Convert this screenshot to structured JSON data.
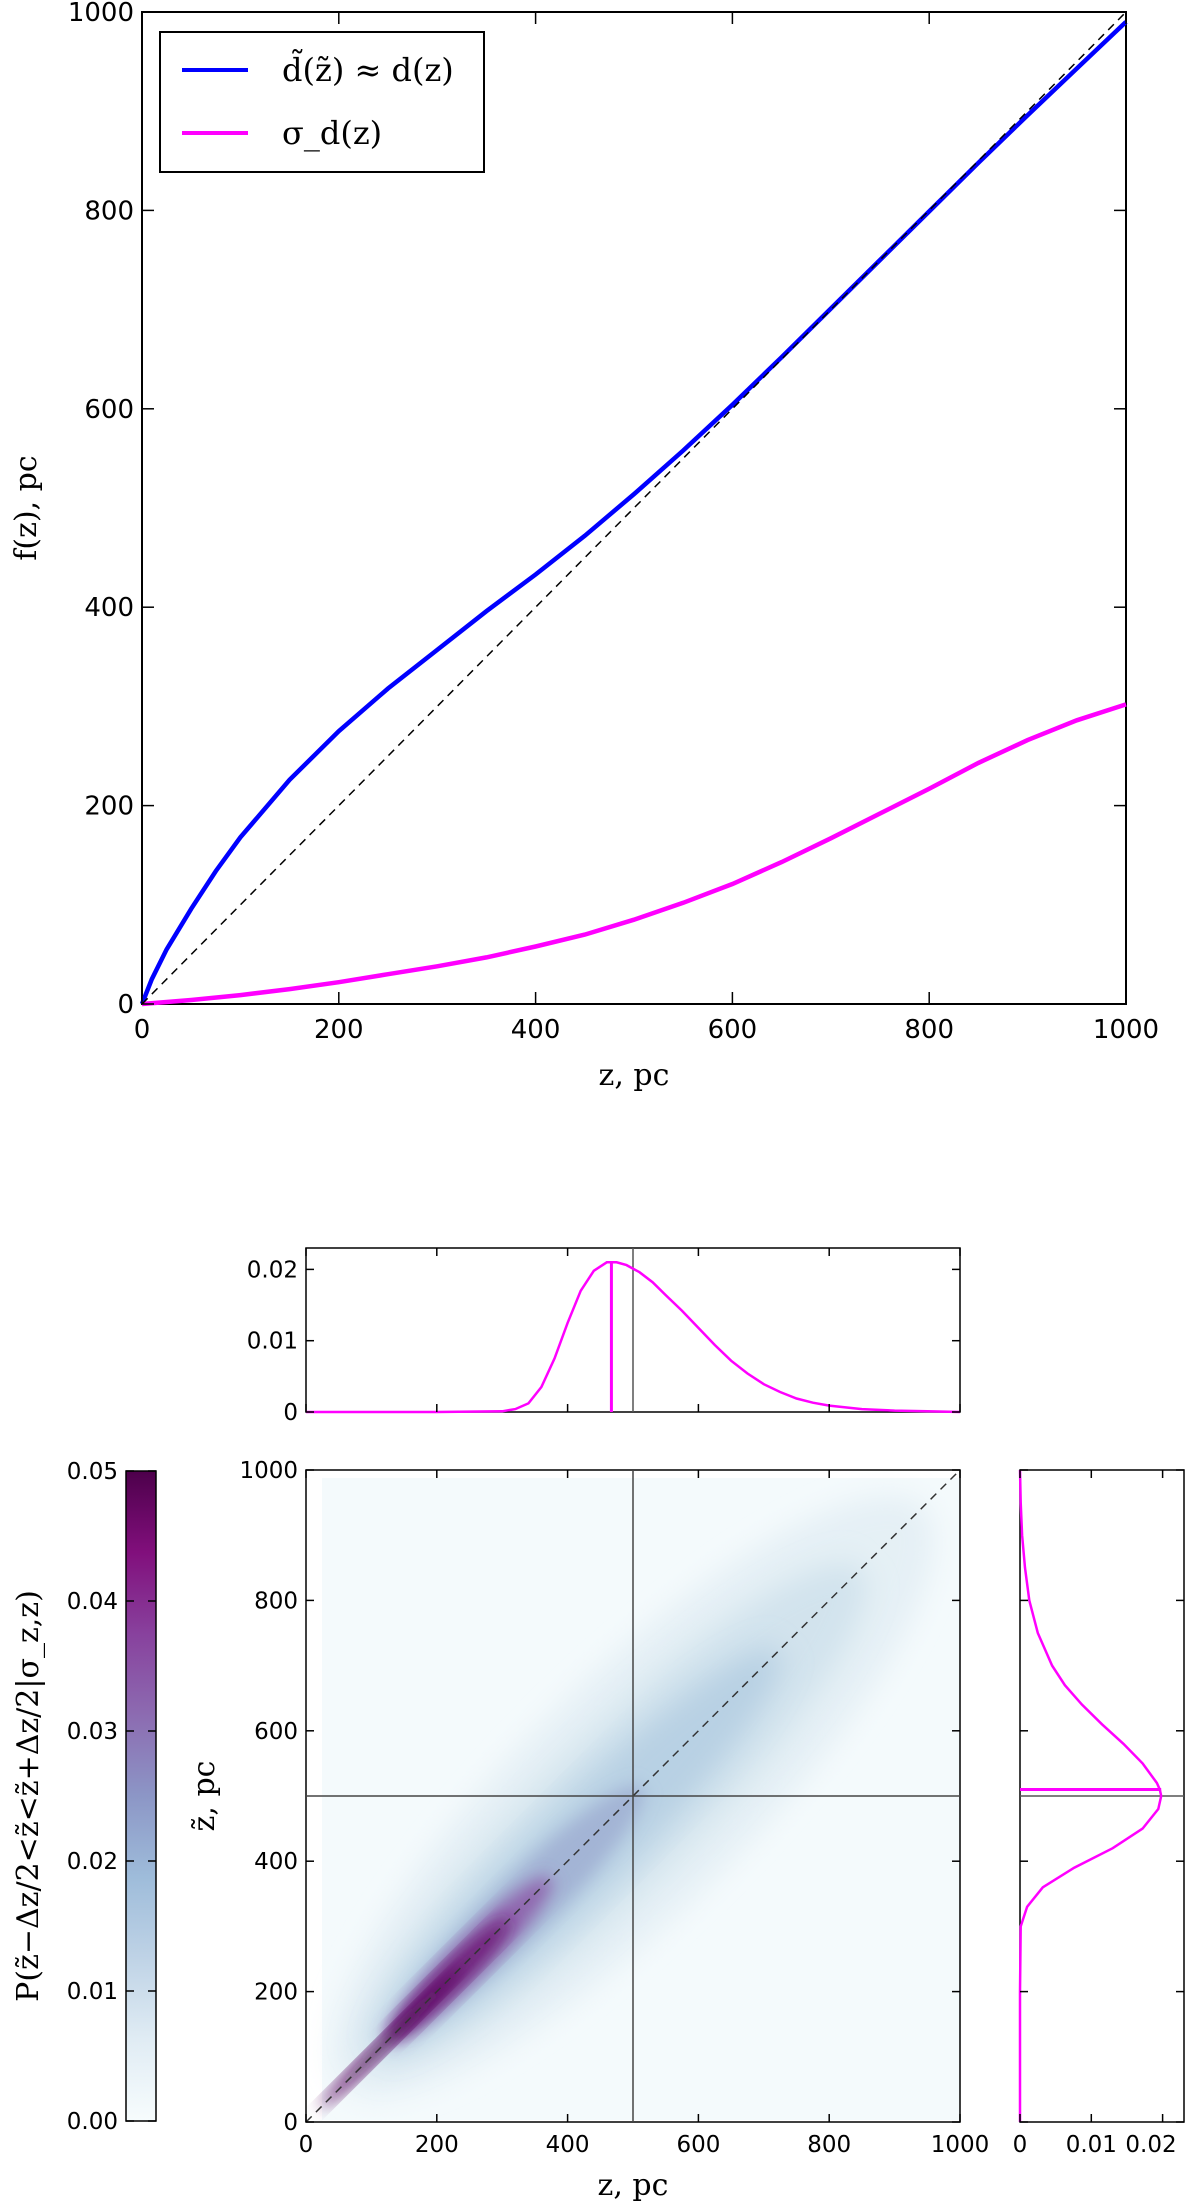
{
  "chart_data": [
    {
      "type": "line",
      "xlabel": "z, pc",
      "ylabel": "f(z), pc",
      "xlim": [
        0,
        1000
      ],
      "ylim": [
        0,
        1000
      ],
      "xticks": [
        "0",
        "200",
        "400",
        "600",
        "800",
        "1000"
      ],
      "yticks": [
        "0",
        "200",
        "400",
        "600",
        "800",
        "1000"
      ],
      "grid": false,
      "legend_position": "top-left",
      "series": [
        {
          "name": "d̃(z̃) ≈ d(z)",
          "color": "#0000ff",
          "x": [
            0,
            10,
            25,
            50,
            75,
            100,
            150,
            200,
            250,
            300,
            350,
            400,
            450,
            500,
            550,
            600,
            650,
            700,
            750,
            800,
            850,
            900,
            950,
            1000
          ],
          "y": [
            0,
            25,
            55,
            96,
            134,
            168,
            226,
            275,
            318,
            357,
            396,
            433,
            472,
            514,
            558,
            604,
            652,
            701,
            750,
            799,
            848,
            896,
            943,
            990
          ]
        },
        {
          "name": "σ_d(z)",
          "color": "#ff00ff",
          "x": [
            0,
            50,
            100,
            150,
            200,
            250,
            300,
            350,
            400,
            450,
            500,
            550,
            600,
            650,
            700,
            750,
            800,
            850,
            900,
            950,
            1000
          ],
          "y": [
            0,
            4,
            9,
            15,
            22,
            30,
            38,
            47,
            58,
            70,
            85,
            102,
            121,
            143,
            167,
            192,
            217,
            243,
            266,
            286,
            302
          ]
        },
        {
          "name": "",
          "color": "#000000",
          "style": "dashed",
          "x": [
            0,
            1000
          ],
          "y": [
            0,
            1000
          ]
        }
      ]
    },
    {
      "type": "line",
      "panel": "top-marginal",
      "xlim": [
        0,
        1000
      ],
      "ylim": [
        0,
        0.023
      ],
      "yticks": [
        "0",
        "0.01",
        "0.02"
      ],
      "x": [
        0,
        100,
        200,
        250,
        300,
        320,
        340,
        360,
        380,
        400,
        420,
        440,
        460,
        475,
        490,
        510,
        530,
        550,
        575,
        600,
        625,
        650,
        675,
        700,
        725,
        750,
        775,
        800,
        850,
        900,
        950,
        1000
      ],
      "y": [
        0,
        0,
        0,
        5e-05,
        0.0001,
        0.0004,
        0.0012,
        0.0035,
        0.0075,
        0.0125,
        0.017,
        0.0198,
        0.021,
        0.021,
        0.0206,
        0.0196,
        0.0182,
        0.0164,
        0.0142,
        0.0118,
        0.0094,
        0.0072,
        0.0054,
        0.0039,
        0.0028,
        0.0019,
        0.0013,
        0.0009,
        0.0004,
        0.0002,
        0.0001,
        0.0
      ],
      "color": "#ff00ff",
      "peak_marker_x": 467,
      "reference_line_x": 500
    },
    {
      "type": "heatmap",
      "panel": "main",
      "xlabel": "z, pc",
      "ylabel": "z̃, pc",
      "xlim": [
        0,
        1000
      ],
      "ylim": [
        0,
        1000
      ],
      "xticks": [
        "0",
        "200",
        "400",
        "600",
        "800",
        "1000"
      ],
      "yticks": [
        "0",
        "200",
        "400",
        "600",
        "800",
        "1000"
      ],
      "colormap": "BuPu",
      "colorbar": {
        "label": "P(z̃−Δz/2<z̃<z̃+Δz/2|σ_z,z)",
        "ticks": [
          "0.00",
          "0.01",
          "0.02",
          "0.03",
          "0.04",
          "0.05"
        ],
        "range": [
          0,
          0.05
        ],
        "colors": [
          "#f7fcfd",
          "#e0ecf4",
          "#bfd3e6",
          "#9ebcda",
          "#8c96c6",
          "#8c6bb1",
          "#88419d",
          "#810f7c",
          "#4d004b"
        ]
      },
      "density_ridge": "peaks along z̃ ≈ z, highest near z ≈ 200 pc",
      "reference_lines": {
        "x": 500,
        "y": 500
      },
      "diagonal": "dashed"
    },
    {
      "type": "line",
      "panel": "right-marginal",
      "xlim": [
        0,
        0.023
      ],
      "ylim": [
        0,
        1000
      ],
      "xticks": [
        "0",
        "0.01",
        "0.02"
      ],
      "y": [
        0,
        200,
        300,
        330,
        360,
        390,
        420,
        450,
        480,
        500,
        510,
        520,
        550,
        580,
        610,
        640,
        670,
        700,
        750,
        800,
        850,
        900,
        950,
        1000
      ],
      "x": [
        0,
        0,
        0.0001,
        0.001,
        0.0032,
        0.0076,
        0.013,
        0.0172,
        0.0194,
        0.0198,
        0.0196,
        0.0192,
        0.0172,
        0.0145,
        0.0115,
        0.0087,
        0.0063,
        0.0045,
        0.0025,
        0.0013,
        0.0007,
        0.0003,
        0.0001,
        0.0
      ],
      "color": "#ff00ff",
      "peak_marker_y": 510,
      "reference_line_y": 500
    }
  ]
}
